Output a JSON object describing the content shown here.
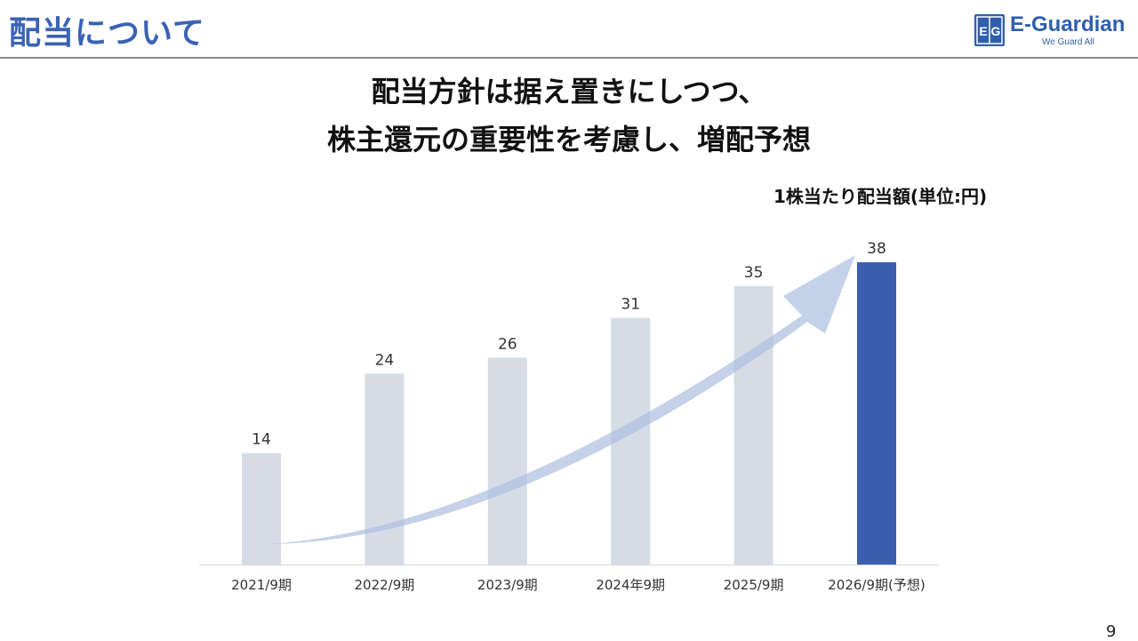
{
  "slide": {
    "title": "配当について",
    "headline_lines": [
      "配当方針は据え置きにしつつ、",
      "株主還元の重要性を考慮し、増配予想"
    ],
    "page_number": "9"
  },
  "logo": {
    "mark": "EG",
    "name": "E-Guardian",
    "tagline": "We Guard All"
  },
  "colors": {
    "accent": "#3a63b5",
    "bar_past": "#d6dce6",
    "bar_forecast": "#3a60ad",
    "arrow": "#aebfe0"
  },
  "chart_data": {
    "type": "bar",
    "unit_label": "1株当たり配当額(単位:円)",
    "categories": [
      "2021/9期",
      "2022/9期",
      "2023/9期",
      "2024年9期",
      "2025/9期",
      "2026/9期(予想)"
    ],
    "values": [
      14,
      24,
      26,
      31,
      35,
      38
    ],
    "highlight_index": 5,
    "ylim": [
      0,
      38
    ],
    "grid": false,
    "legend": "none",
    "annotation": "upward-trend-arrow"
  }
}
